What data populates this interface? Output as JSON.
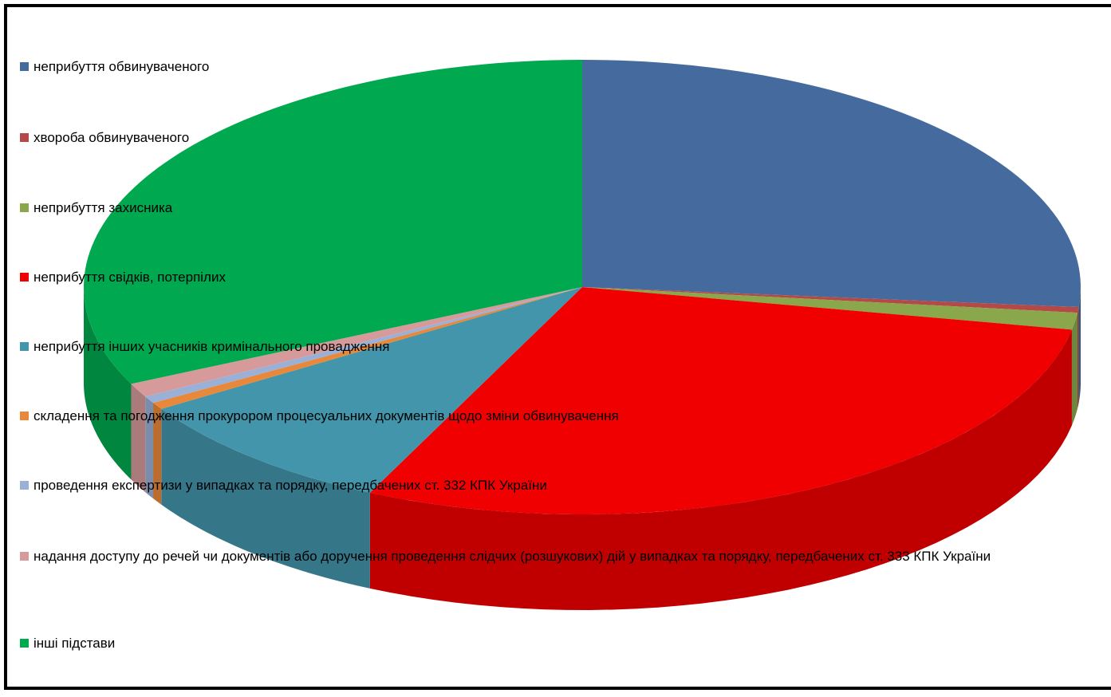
{
  "chart_data": {
    "type": "pie",
    "three_d": true,
    "legend": "left",
    "categories": [
      "неприбуття обвинуваченого",
      "хвороба обвинуваченого",
      "неприбуття захисника",
      "неприбуття свідків, потерпілих",
      "неприбуття інших учасників кримінального провадження",
      "складення та погодження прокурором процесуальних документів щодо зміни обвинувачення",
      "проведення експертизи у випадках та порядку, передбачених ст. 332 КПК України",
      "надання доступу до речей чи документів або доручення проведення слідчих (розшукових) дій у випадках та порядку, передбачених ст. 333 КПК України",
      "інші підстави"
    ],
    "values": [
      26.4,
      0.4,
      1.2,
      29,
      9,
      0.5,
      0.5,
      1,
      32
    ],
    "colors": [
      "#456b9e",
      "#b34a47",
      "#8aa74c",
      "#f00000",
      "#4295aa",
      "#e8883a",
      "#9bb0d6",
      "#d59a99",
      "#00a84f"
    ]
  }
}
